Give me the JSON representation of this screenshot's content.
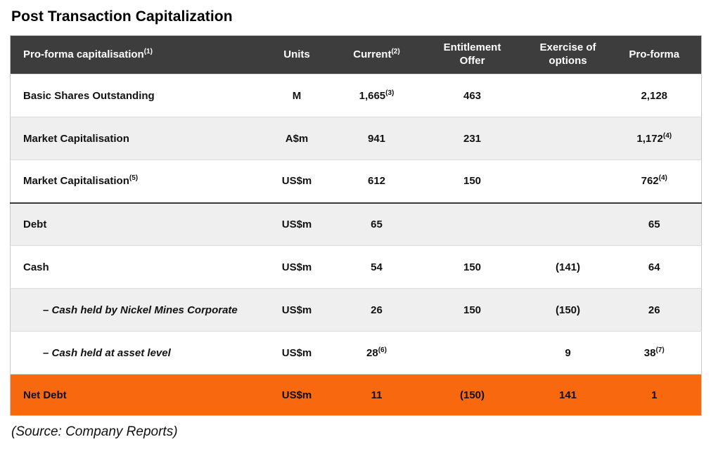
{
  "title": "Post Transaction Capitalization",
  "source": "(Source: Company Reports)",
  "colors": {
    "header_bg": "#3e3d3d",
    "header_text": "#ffffff",
    "row_bg": "#ffffff",
    "row_alt_bg": "#efefef",
    "net_debt_bg": "#f8690f",
    "divider": "#dcdcdc",
    "strong_divider": "#3a3a3a",
    "text": "#121212"
  },
  "chart_data": {
    "type": "table",
    "columns": [
      {
        "label": "Pro-forma capitalisation",
        "sup": "(1)"
      },
      {
        "label": "Units"
      },
      {
        "label": "Current",
        "sup": "(2)"
      },
      {
        "label": "Entitlement\nOffer"
      },
      {
        "label": "Exercise of\noptions"
      },
      {
        "label": "Pro-forma"
      }
    ],
    "rows": [
      {
        "label": "Basic Shares Outstanding",
        "units": "M",
        "current": "1,665",
        "current_sup": "(3)",
        "offer": "463",
        "options": "",
        "proforma": "2,128"
      },
      {
        "label": "Market Capitalisation",
        "units": "A$m",
        "current": "941",
        "offer": "231",
        "options": "",
        "proforma": "1,172",
        "proforma_sup": "(4)"
      },
      {
        "label": "Market Capitalisation",
        "label_sup": "(5)",
        "units": "US$m",
        "current": "612",
        "offer": "150",
        "options": "",
        "proforma": "762",
        "proforma_sup": "(4)"
      },
      {
        "label": "Debt",
        "units": "US$m",
        "current": "65",
        "offer": "",
        "options": "",
        "proforma": "65"
      },
      {
        "label": "Cash",
        "units": "US$m",
        "current": "54",
        "offer": "150",
        "options": "(141)",
        "proforma": "64"
      },
      {
        "label": "– Cash held by Nickel Mines Corporate",
        "units": "US$m",
        "current": "26",
        "offer": "150",
        "options": "(150)",
        "proforma": "26"
      },
      {
        "label": "– Cash held at asset level",
        "units": "US$m",
        "current": "28",
        "current_sup": "(6)",
        "offer": "",
        "options": "9",
        "proforma": "38",
        "proforma_sup": "(7)"
      },
      {
        "label": "Net Debt",
        "units": "US$m",
        "current": "11",
        "offer": "(150)",
        "options": "141",
        "proforma": "1"
      }
    ]
  }
}
